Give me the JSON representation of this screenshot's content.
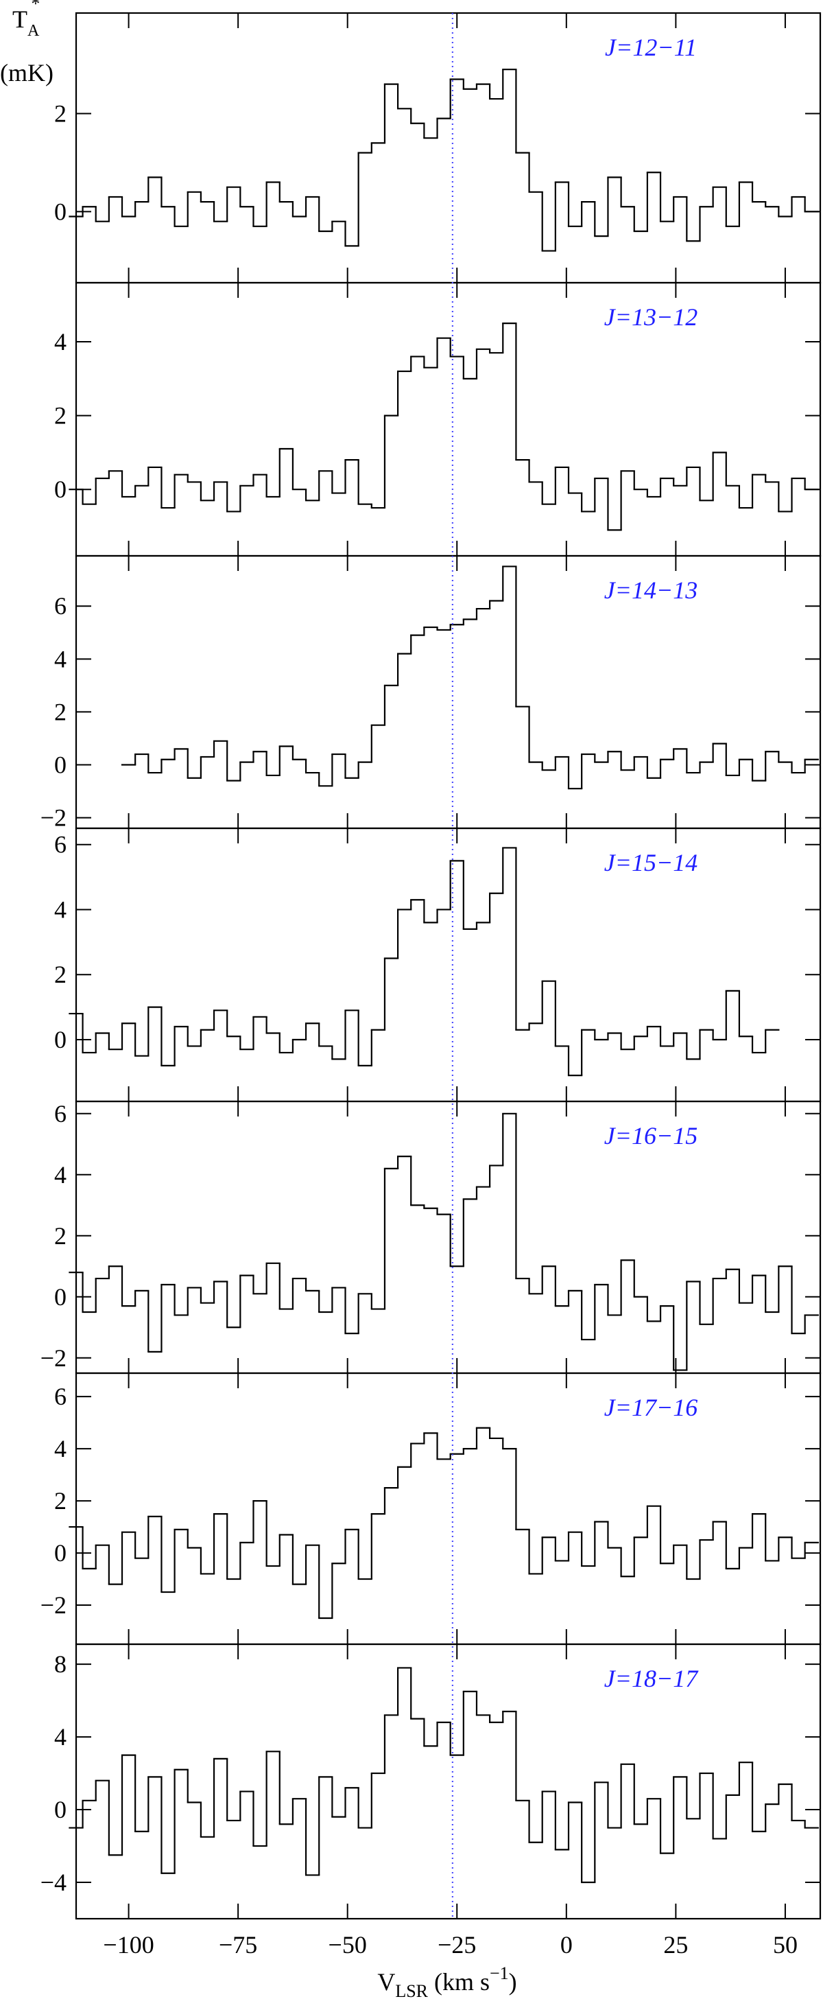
{
  "chart_data": [
    {
      "type": "line",
      "drawstyle": "steps-mid",
      "title": "J=12−11",
      "title_color": "#1f1fff",
      "color": "#000000",
      "x": [
        -112,
        -109,
        -106,
        -103,
        -100,
        -97,
        -94,
        -91,
        -88,
        -85,
        -82,
        -79,
        -76,
        -73,
        -70,
        -67,
        -64,
        -61,
        -58,
        -55,
        -52,
        -49,
        -46,
        -43,
        -40,
        -37,
        -34,
        -31,
        -28,
        -25,
        -22,
        -19,
        -16,
        -13,
        -10,
        -7,
        -4,
        -1,
        2,
        5,
        8,
        11,
        14,
        17,
        20,
        23,
        26,
        29,
        32,
        35,
        38,
        41,
        44,
        47,
        50,
        53,
        56
      ],
      "values": [
        -0.1,
        0.1,
        -0.2,
        0.3,
        -0.1,
        0.2,
        0.7,
        0.1,
        -0.3,
        0.4,
        0.2,
        -0.2,
        0.5,
        0.1,
        -0.3,
        0.6,
        0.2,
        -0.1,
        0.3,
        -0.4,
        -0.2,
        -0.7,
        1.2,
        1.4,
        2.6,
        2.1,
        1.8,
        1.5,
        1.9,
        2.7,
        2.5,
        2.6,
        2.3,
        2.9,
        1.2,
        0.4,
        -0.8,
        0.6,
        -0.3,
        0.2,
        -0.5,
        0.7,
        0.1,
        -0.4,
        0.8,
        -0.2,
        0.3,
        -0.6,
        0.1,
        0.5,
        -0.3,
        0.6,
        0.2,
        0.1,
        -0.1,
        0.3,
        0.0
      ],
      "ylim": [
        -1.45,
        4.05
      ],
      "yticks": [
        0,
        2
      ]
    },
    {
      "type": "line",
      "drawstyle": "steps-mid",
      "title": "J=13−12",
      "title_color": "#1f1fff",
      "color": "#000000",
      "x": [
        -112,
        -109,
        -106,
        -103,
        -100,
        -97,
        -94,
        -91,
        -88,
        -85,
        -82,
        -79,
        -76,
        -73,
        -70,
        -67,
        -64,
        -61,
        -58,
        -55,
        -52,
        -49,
        -46,
        -43,
        -40,
        -37,
        -34,
        -31,
        -28,
        -25,
        -22,
        -19,
        -16,
        -13,
        -10,
        -7,
        -4,
        -1,
        2,
        5,
        8,
        11,
        14,
        17,
        20,
        23,
        26,
        29,
        32,
        35,
        38,
        41,
        44,
        47,
        50,
        53,
        56
      ],
      "values": [
        0.0,
        -0.4,
        0.3,
        0.5,
        -0.2,
        0.1,
        0.6,
        -0.5,
        0.4,
        0.2,
        -0.3,
        0.2,
        -0.6,
        0.1,
        0.4,
        -0.2,
        1.1,
        0.0,
        -0.3,
        0.5,
        -0.1,
        0.8,
        -0.4,
        -0.5,
        2.0,
        3.2,
        3.6,
        3.3,
        4.1,
        3.6,
        3.0,
        3.8,
        3.7,
        4.5,
        0.8,
        0.2,
        -0.4,
        0.6,
        -0.1,
        -0.6,
        0.3,
        -1.1,
        0.5,
        0.0,
        -0.2,
        0.3,
        0.1,
        0.6,
        -0.3,
        1.0,
        0.1,
        -0.5,
        0.4,
        0.2,
        -0.6,
        0.3,
        0.0
      ],
      "ylim": [
        -1.8,
        5.6
      ],
      "yticks": [
        0,
        2,
        4
      ]
    },
    {
      "type": "line",
      "drawstyle": "steps-mid",
      "title": "J=14−13",
      "title_color": "#1f1fff",
      "color": "#000000",
      "x": [
        -112,
        -109,
        -106,
        -103,
        -100,
        -97,
        -94,
        -91,
        -88,
        -85,
        -82,
        -79,
        -76,
        -73,
        -70,
        -67,
        -64,
        -61,
        -58,
        -55,
        -52,
        -49,
        -46,
        -43,
        -40,
        -37,
        -34,
        -31,
        -28,
        -25,
        -22,
        -19,
        -16,
        -13,
        -10,
        -7,
        -4,
        -1,
        2,
        5,
        8,
        11,
        14,
        17,
        20,
        23,
        26,
        29,
        32,
        35,
        38,
        41,
        44,
        47,
        50,
        53,
        56
      ],
      "values": [
        null,
        null,
        null,
        null,
        0.0,
        0.4,
        -0.3,
        0.2,
        0.6,
        -0.5,
        0.3,
        0.9,
        -0.6,
        0.1,
        0.5,
        -0.4,
        0.7,
        0.2,
        -0.3,
        -0.8,
        0.4,
        -0.5,
        0.1,
        1.5,
        3.0,
        4.2,
        4.9,
        5.2,
        5.1,
        5.3,
        5.5,
        5.9,
        6.2,
        7.5,
        2.2,
        0.1,
        -0.2,
        0.3,
        -0.9,
        0.4,
        0.1,
        0.5,
        -0.2,
        0.3,
        -0.5,
        0.2,
        0.6,
        -0.3,
        0.1,
        0.8,
        -0.4,
        0.2,
        -0.6,
        0.5,
        0.1,
        -0.3,
        0.2
      ],
      "ylim": [
        -2.4,
        7.9
      ],
      "yticks": [
        {
          "value": -2,
          "label": "−2"
        },
        0,
        2,
        4,
        6
      ]
    },
    {
      "type": "line",
      "drawstyle": "steps-mid",
      "title": "J=15−14",
      "title_color": "#1f1fff",
      "color": "#000000",
      "x": [
        -112,
        -109,
        -106,
        -103,
        -100,
        -97,
        -94,
        -91,
        -88,
        -85,
        -82,
        -79,
        -76,
        -73,
        -70,
        -67,
        -64,
        -61,
        -58,
        -55,
        -52,
        -49,
        -46,
        -43,
        -40,
        -37,
        -34,
        -31,
        -28,
        -25,
        -22,
        -19,
        -16,
        -13,
        -10,
        -7,
        -4,
        -1,
        2,
        5,
        8,
        11,
        14,
        17,
        20,
        23,
        26,
        29,
        32,
        35,
        38,
        41,
        44,
        47,
        50,
        53,
        56
      ],
      "values": [
        0.8,
        -0.4,
        0.2,
        -0.3,
        0.5,
        -0.5,
        1.0,
        -0.8,
        0.4,
        -0.2,
        0.3,
        0.9,
        0.1,
        -0.3,
        0.7,
        0.2,
        -0.4,
        0.0,
        0.5,
        -0.2,
        -0.6,
        0.9,
        -0.8,
        0.3,
        2.5,
        4.0,
        4.3,
        3.6,
        4.0,
        5.5,
        3.4,
        3.6,
        4.5,
        5.9,
        0.3,
        0.5,
        1.8,
        -0.2,
        -1.1,
        0.3,
        0.0,
        0.2,
        -0.3,
        0.1,
        0.4,
        -0.2,
        0.2,
        -0.6,
        0.3,
        0.0,
        1.5,
        0.1,
        -0.4,
        0.3,
        null,
        null,
        null
      ],
      "ylim": [
        -1.9,
        6.5
      ],
      "yticks": [
        0,
        2,
        4,
        6
      ]
    },
    {
      "type": "line",
      "drawstyle": "steps-mid",
      "title": "J=16−15",
      "title_color": "#1f1fff",
      "color": "#000000",
      "x": [
        -112,
        -109,
        -106,
        -103,
        -100,
        -97,
        -94,
        -91,
        -88,
        -85,
        -82,
        -79,
        -76,
        -73,
        -70,
        -67,
        -64,
        -61,
        -58,
        -55,
        -52,
        -49,
        -46,
        -43,
        -40,
        -37,
        -34,
        -31,
        -28,
        -25,
        -22,
        -19,
        -16,
        -13,
        -10,
        -7,
        -4,
        -1,
        2,
        5,
        8,
        11,
        14,
        17,
        20,
        23,
        26,
        29,
        32,
        35,
        38,
        41,
        44,
        47,
        50,
        53,
        56
      ],
      "values": [
        0.8,
        -0.5,
        0.6,
        1.0,
        -0.3,
        0.2,
        -1.8,
        0.4,
        -0.6,
        0.3,
        -0.2,
        0.5,
        -1.0,
        0.7,
        0.1,
        1.1,
        -0.4,
        0.6,
        0.2,
        -0.5,
        0.3,
        -1.2,
        0.1,
        -0.4,
        4.2,
        4.6,
        3.0,
        2.9,
        2.7,
        1.0,
        3.2,
        3.6,
        4.3,
        6.0,
        0.6,
        0.1,
        1.0,
        -0.3,
        0.2,
        -1.4,
        0.4,
        -0.6,
        1.2,
        0.0,
        -0.8,
        -0.3,
        -2.4,
        0.5,
        -0.9,
        0.6,
        0.9,
        -0.2,
        0.7,
        -0.5,
        1.0,
        -1.2,
        -0.6
      ],
      "ylim": [
        -2.5,
        6.4
      ],
      "yticks": [
        {
          "value": -2,
          "label": "−2"
        },
        0,
        2,
        4,
        6
      ]
    },
    {
      "type": "line",
      "drawstyle": "steps-mid",
      "title": "J=17−16",
      "title_color": "#1f1fff",
      "color": "#000000",
      "x": [
        -112,
        -109,
        -106,
        -103,
        -100,
        -97,
        -94,
        -91,
        -88,
        -85,
        -82,
        -79,
        -76,
        -73,
        -70,
        -67,
        -64,
        -61,
        -58,
        -55,
        -52,
        -49,
        -46,
        -43,
        -40,
        -37,
        -34,
        -31,
        -28,
        -25,
        -22,
        -19,
        -16,
        -13,
        -10,
        -7,
        -4,
        -1,
        2,
        5,
        8,
        11,
        14,
        17,
        20,
        23,
        26,
        29,
        32,
        35,
        38,
        41,
        44,
        47,
        50,
        53,
        56
      ],
      "values": [
        1.0,
        -0.6,
        0.3,
        -1.2,
        0.8,
        -0.2,
        1.4,
        -1.5,
        0.9,
        0.2,
        -0.8,
        1.5,
        -1.0,
        0.4,
        2.0,
        -0.5,
        0.7,
        -1.2,
        0.3,
        -2.5,
        -0.4,
        0.9,
        -1.0,
        1.5,
        2.5,
        3.3,
        4.2,
        4.6,
        3.6,
        3.8,
        4.0,
        4.8,
        4.4,
        4.0,
        0.9,
        -0.8,
        0.6,
        -0.3,
        0.8,
        -0.5,
        1.2,
        0.2,
        -0.9,
        0.6,
        1.8,
        -0.4,
        0.3,
        -1.0,
        0.5,
        1.2,
        -0.6,
        0.2,
        1.5,
        -0.3,
        0.6,
        -0.2,
        0.4
      ],
      "ylim": [
        -3.5,
        6.9
      ],
      "yticks": [
        {
          "value": -2,
          "label": "−2"
        },
        0,
        2,
        4,
        6
      ]
    },
    {
      "type": "line",
      "drawstyle": "steps-mid",
      "title": "J=18−17",
      "title_color": "#1f1fff",
      "color": "#000000",
      "x": [
        -112,
        -109,
        -106,
        -103,
        -100,
        -97,
        -94,
        -91,
        -88,
        -85,
        -82,
        -79,
        -76,
        -73,
        -70,
        -67,
        -64,
        -61,
        -58,
        -55,
        -52,
        -49,
        -46,
        -43,
        -40,
        -37,
        -34,
        -31,
        -28,
        -25,
        -22,
        -19,
        -16,
        -13,
        -10,
        -7,
        -4,
        -1,
        2,
        5,
        8,
        11,
        14,
        17,
        20,
        23,
        26,
        29,
        32,
        35,
        38,
        41,
        44,
        47,
        50,
        53,
        56
      ],
      "values": [
        -1.0,
        0.5,
        1.6,
        -2.5,
        3.0,
        -1.2,
        1.8,
        -3.5,
        2.2,
        0.4,
        -1.5,
        2.8,
        -0.6,
        1.0,
        -2.0,
        3.2,
        -0.8,
        0.6,
        -3.6,
        1.8,
        -0.4,
        1.2,
        -1.0,
        2.0,
        5.2,
        7.8,
        5.0,
        3.5,
        4.8,
        3.0,
        6.5,
        5.2,
        4.8,
        5.4,
        0.5,
        -1.8,
        1.0,
        -2.2,
        0.4,
        -4.0,
        1.5,
        -1.0,
        2.5,
        -0.8,
        0.6,
        -2.4,
        1.8,
        -0.5,
        2.0,
        -1.6,
        0.8,
        2.6,
        -1.2,
        0.3,
        1.4,
        -0.6,
        -1.0
      ],
      "ylim": [
        -6,
        9.1
      ],
      "yticks": [
        {
          "value": -4,
          "label": "−4"
        },
        0,
        4,
        8
      ],
      "xlim": [
        -112,
        58
      ],
      "xticks": [
        {
          "value": -100,
          "label": "−100"
        },
        {
          "value": -75,
          "label": "−75"
        },
        {
          "value": -50,
          "label": "−50"
        },
        {
          "value": -25,
          "label": "−25"
        },
        0,
        25,
        50
      ]
    }
  ],
  "reference_line": {
    "x": -26,
    "color": "#4d4dff"
  },
  "y_label": {
    "text": "T",
    "sup": "*",
    "sub": "A",
    "unit": "(mK)"
  },
  "x_label": {
    "text": "V",
    "sub": "LSR",
    "unit": " (km s",
    "sup": "−1",
    "close": ")"
  }
}
